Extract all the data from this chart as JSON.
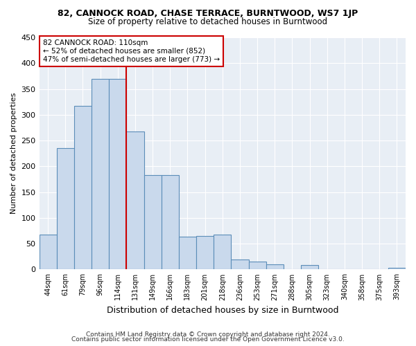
{
  "title": "82, CANNOCK ROAD, CHASE TERRACE, BURNTWOOD, WS7 1JP",
  "subtitle": "Size of property relative to detached houses in Burntwood",
  "xlabel": "Distribution of detached houses by size in Burntwood",
  "ylabel": "Number of detached properties",
  "categories": [
    "44sqm",
    "61sqm",
    "79sqm",
    "96sqm",
    "114sqm",
    "131sqm",
    "149sqm",
    "166sqm",
    "183sqm",
    "201sqm",
    "218sqm",
    "236sqm",
    "253sqm",
    "271sqm",
    "288sqm",
    "305sqm",
    "323sqm",
    "340sqm",
    "358sqm",
    "375sqm",
    "393sqm"
  ],
  "values": [
    68,
    235,
    317,
    370,
    370,
    268,
    183,
    183,
    64,
    65,
    67,
    20,
    16,
    10,
    0,
    8,
    0,
    0,
    0,
    0,
    3
  ],
  "bar_color": "#c9d9ec",
  "bar_edge_color": "#5b8db8",
  "vline_x": 4.5,
  "vline_color": "#cc0000",
  "annotation_text": "82 CANNOCK ROAD: 110sqm\n← 52% of detached houses are smaller (852)\n47% of semi-detached houses are larger (773) →",
  "annotation_box_color": "white",
  "annotation_box_edge_color": "#cc0000",
  "ylim": [
    0,
    450
  ],
  "yticks": [
    0,
    50,
    100,
    150,
    200,
    250,
    300,
    350,
    400,
    450
  ],
  "footer1": "Contains HM Land Registry data © Crown copyright and database right 2024.",
  "footer2": "Contains public sector information licensed under the Open Government Licence v3.0.",
  "bg_color": "#ffffff",
  "plot_bg_color": "#e8eef5",
  "grid_color": "#ffffff"
}
